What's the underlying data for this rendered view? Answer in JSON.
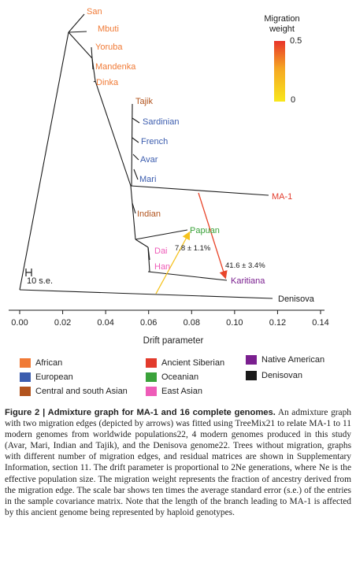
{
  "colors": {
    "african": "#f07a36",
    "european": "#3b5cae",
    "central_south_asian": "#b2541e",
    "ancient_siberian": "#e23b2c",
    "oceanian": "#3aa23a",
    "east_asian": "#ee5cb8",
    "native_american": "#7a1f8f",
    "denisovan": "#1a1a1a",
    "tree": "#1a1a1a",
    "weight_high": "#e8342a",
    "weight_low": "#f8e71c"
  },
  "figure": {
    "leaves": [
      {
        "label": "San",
        "group": "african"
      },
      {
        "label": "Mbuti",
        "group": "african"
      },
      {
        "label": "Yoruba",
        "group": "african"
      },
      {
        "label": "Mandenka",
        "group": "african"
      },
      {
        "label": "Dinka",
        "group": "african"
      },
      {
        "label": "Tajik",
        "group": "central_south_asian"
      },
      {
        "label": "Sardinian",
        "group": "european"
      },
      {
        "label": "French",
        "group": "european"
      },
      {
        "label": "Avar",
        "group": "european"
      },
      {
        "label": "Mari",
        "group": "european"
      },
      {
        "label": "MA-1",
        "group": "ancient_siberian"
      },
      {
        "label": "Indian",
        "group": "central_south_asian"
      },
      {
        "label": "Papuan",
        "group": "oceanian"
      },
      {
        "label": "Dai",
        "group": "east_asian"
      },
      {
        "label": "Han",
        "group": "east_asian"
      },
      {
        "label": "Karitiana",
        "group": "native_american"
      },
      {
        "label": "Denisova",
        "group": "denisovan"
      }
    ],
    "migration_edges": [
      {
        "label": "7.8 ± 1.1%",
        "weight": 0.078
      },
      {
        "label": "41.6 ± 3.4%",
        "weight": 0.416
      }
    ],
    "scale_bar_label": "10 s.e.",
    "x_axis": {
      "label": "Drift parameter",
      "ticks": [
        "0.00",
        "0.02",
        "0.04",
        "0.06",
        "0.08",
        "0.10",
        "0.12",
        "0.14"
      ],
      "range": [
        0,
        0.14
      ]
    },
    "weight_bar": {
      "title_line1": "Migration",
      "title_line2": "weight",
      "max_label": "0.5",
      "min_label": "0"
    }
  },
  "legend": {
    "items": [
      {
        "label": "African",
        "color": "#f07a36"
      },
      {
        "label": "European",
        "color": "#3b5cae"
      },
      {
        "label": "Central and south Asian",
        "color": "#b2541e"
      },
      {
        "label": "Ancient Siberian",
        "color": "#e23b2c"
      },
      {
        "label": "Oceanian",
        "color": "#3aa23a"
      },
      {
        "label": "East Asian",
        "color": "#ee5cb8"
      },
      {
        "label": "Native American",
        "color": "#7a1f8f"
      },
      {
        "label": "Denisovan",
        "color": "#1a1a1a"
      }
    ]
  },
  "caption": {
    "heading": "Figure 2 | Admixture graph for MA-1 and 16 complete genomes.",
    "body": "An admixture graph with two migration edges (depicted by arrows) was fitted using TreeMix21 to relate MA-1 to 11 modern genomes from worldwide populations22, 4 modern genomes produced in this study (Avar, Mari, Indian and Tajik), and the Denisova genome22. Trees without migration, graphs with different number of migration edges, and residual matrices are shown in Supplementary Information, section 11. The drift parameter is proportional to 2Ne generations, where Ne is the effective population size. The migration weight represents the fraction of ancestry derived from the migration edge. The scale bar shows ten times the average standard error (s.e.) of the entries in the sample covariance matrix. Note that the length of the branch leading to MA-1 is affected by this ancient genome being represented by haploid genotypes."
  }
}
